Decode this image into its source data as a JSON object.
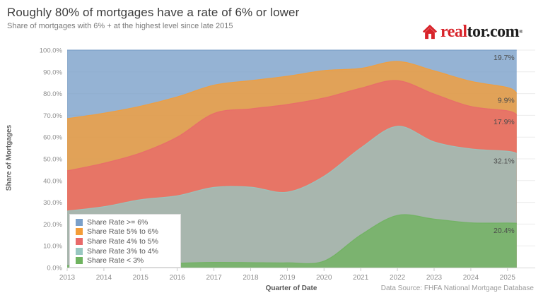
{
  "header": {
    "title": "Roughly 80% of mortgages have a rate of 6% or lower",
    "subtitle": "Share of mortgages with 6% + at the highest level since late 2015"
  },
  "logo": {
    "brand_red": "real",
    "brand_dark": "tor.com",
    "reg_mark": "®",
    "house_color": "#d8232a"
  },
  "chart_data": {
    "type": "area",
    "stacked": true,
    "title": "Roughly 80% of mortgages have a rate of 6% or lower",
    "xlabel": "Quarter of Date",
    "ylabel": "Share of Mortgages",
    "ylim": [
      0,
      100
    ],
    "grid": true,
    "legend_position": "inside bottom-left",
    "x_tick_labels": [
      "2013",
      "2014",
      "2015",
      "2016",
      "2017",
      "2018",
      "2019",
      "2020",
      "2021",
      "2022",
      "2023",
      "2024",
      "2025"
    ],
    "y_tick_labels": [
      "0.0%",
      "10.0%",
      "20.0%",
      "30.0%",
      "40.0%",
      "50.0%",
      "60.0%",
      "70.0%",
      "80.0%",
      "90.0%",
      "100.0%"
    ],
    "x": [
      2013,
      2014,
      2015,
      2016,
      2017,
      2018,
      2019,
      2020,
      2021,
      2022,
      2023,
      2024,
      2025,
      2025.25
    ],
    "series": [
      {
        "name": "Share Rate < 3%",
        "color": "#6fb35f",
        "end_label": "20.4%",
        "values": [
          1.0,
          1.0,
          1.2,
          2.0,
          2.4,
          2.3,
          2.2,
          3.0,
          15.0,
          24.0,
          22.3,
          20.6,
          20.5,
          20.4
        ]
      },
      {
        "name": "Share Rate 3% to 4%",
        "color": "#98c7c0",
        "end_label": "32.1%",
        "values": [
          25.0,
          27.0,
          30.0,
          31.0,
          34.5,
          34.7,
          32.5,
          39.0,
          40.0,
          41.0,
          35.5,
          34.0,
          33.0,
          32.1
        ]
      },
      {
        "name": "Share Rate 4% to 5%",
        "color": "#e86a6a",
        "end_label": "17.9%",
        "values": [
          18.5,
          20.0,
          21.5,
          27.0,
          34.0,
          36.0,
          40.3,
          36.0,
          27.5,
          21.0,
          22.0,
          19.5,
          18.6,
          17.9
        ]
      },
      {
        "name": "Share Rate 5% to 6%",
        "color": "#f49d38",
        "end_label": "9.9%",
        "values": [
          24.0,
          23.0,
          21.5,
          18.5,
          13.0,
          13.0,
          13.0,
          12.6,
          9.1,
          8.8,
          10.7,
          11.6,
          10.7,
          9.9
        ]
      },
      {
        "name": "Share Rate >= 6%",
        "color": "#7ba0c9",
        "end_label": "19.7%",
        "values": [
          31.5,
          29.0,
          25.8,
          21.5,
          16.1,
          14.0,
          12.0,
          9.4,
          8.4,
          5.2,
          9.5,
          14.3,
          17.2,
          19.7
        ]
      }
    ],
    "legend_note": "legend lists series top-to-bottom from highest rate to lowest"
  },
  "footer": {
    "data_source": "Data Source: FHFA National Mortgage Database"
  }
}
